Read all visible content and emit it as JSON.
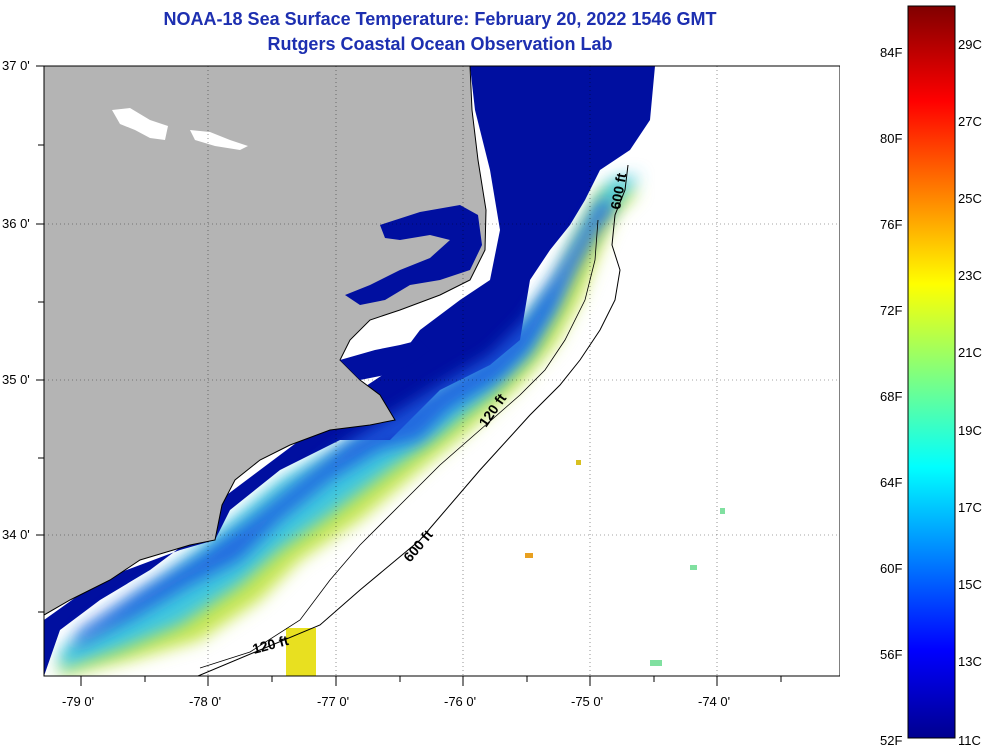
{
  "title": "NOAA-18 Sea Surface Temperature:  February 20, 2022 1546 GMT",
  "subtitle": "Rutgers Coastal Ocean Observation Lab",
  "map": {
    "latitude_labels": [
      "37 0'",
      "36 0'",
      "35 0'",
      "34 0'"
    ],
    "longitude_labels": [
      "-79 0'",
      "-78 0'",
      "-77 0'",
      "-76 0'",
      "-75 0'",
      "-74 0'"
    ],
    "isobath_labels": [
      "600 ft",
      "120 ft",
      "600 ft",
      "120 ft"
    ]
  },
  "colorbar": {
    "fahrenheit_labels": [
      "84F",
      "80F",
      "76F",
      "72F",
      "68F",
      "64F",
      "60F",
      "56F",
      "52F"
    ],
    "celsius_labels": [
      "29C",
      "27C",
      "25C",
      "23C",
      "21C",
      "19C",
      "17C",
      "15C",
      "13C",
      "11C"
    ]
  },
  "colors": {
    "title": "#1d2fb0",
    "land": "#b4b4b4",
    "ocean_cold": "#000fa0",
    "ocean_warm": "#e0e020"
  }
}
